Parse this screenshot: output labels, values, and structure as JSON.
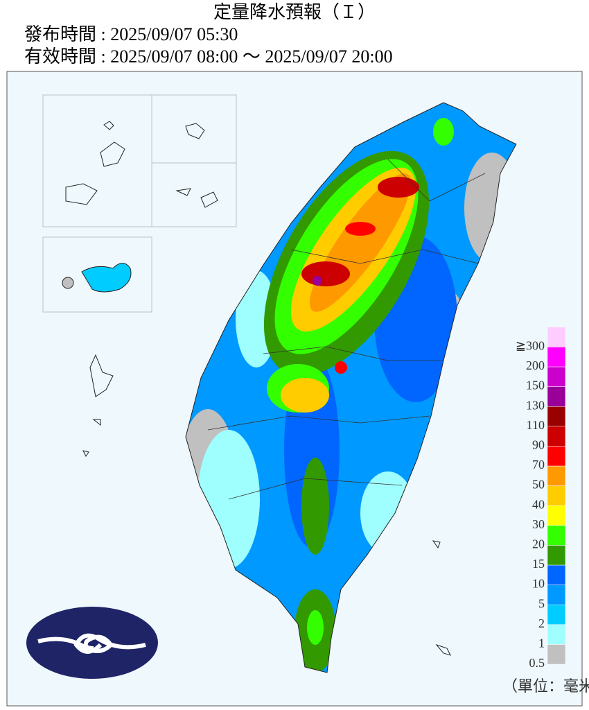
{
  "header": {
    "title": "定量降水預報（Ｉ）",
    "issued": "發布時間 : 2025/09/07 05:30",
    "valid": "有效時間 : 2025/09/07 08:00 ～ 2025/09/07 20:00"
  },
  "legend": {
    "labels": [
      "0.5",
      "1",
      "2",
      "5",
      "10",
      "15",
      "20",
      "30",
      "40",
      "50",
      "70",
      "90",
      "110",
      "130",
      "150",
      "200",
      "≧300"
    ],
    "colors": [
      "#c0c0c0",
      "#9ffffe",
      "#00ccff",
      "#0099ff",
      "#0066ff",
      "#339900",
      "#33ff00",
      "#ffff00",
      "#ffcc00",
      "#ff9900",
      "#ff0000",
      "#cc0000",
      "#990000",
      "#990099",
      "#cc00cc",
      "#ff00ff",
      "#ffccff"
    ],
    "unit": "（單位：毫米）"
  }
}
